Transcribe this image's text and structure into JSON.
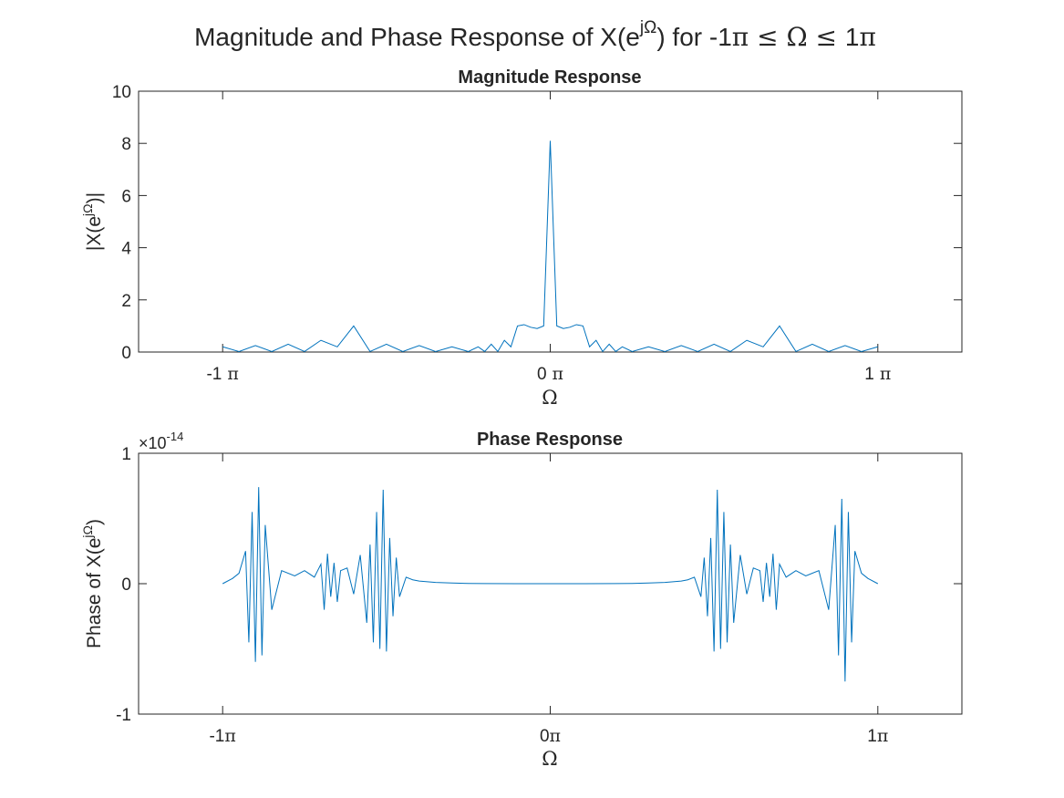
{
  "figure": {
    "title": {
      "prefix": "Magnitude and Phase Response of X(e",
      "superscript": "jΩ",
      "middle": ") for -1",
      "math": "π ≤ Ω ≤ ",
      "suffix_num": "1",
      "suffix_pi": "π"
    }
  },
  "chart_data": [
    {
      "type": "line",
      "title": "Magnitude Response",
      "xlabel": "Ω",
      "ylabel": {
        "prefix": "|X(e",
        "superscript": "jΩ",
        "suffix": ")|"
      },
      "xlim": [
        -1.2566,
        1.2566
      ],
      "ylim": [
        0,
        10
      ],
      "x_unit": "π",
      "xticks": [
        -1,
        0,
        1
      ],
      "xtick_labels": [
        {
          "num": "-1",
          "pi": " π"
        },
        {
          "num": "0",
          "pi": " π"
        },
        {
          "num": "1",
          "pi": " π"
        }
      ],
      "yticks": [
        0,
        2,
        4,
        6,
        8,
        10
      ],
      "ytick_labels": [
        "0",
        "2",
        "4",
        "6",
        "8",
        "10"
      ],
      "grid": false,
      "color": "#0072BD",
      "series": [
        {
          "x": [
            -1.0,
            -0.95,
            -0.9,
            -0.85,
            -0.8,
            -0.75,
            -0.7,
            -0.65,
            -0.6,
            -0.55,
            -0.5,
            -0.45,
            -0.4,
            -0.35,
            -0.3,
            -0.25,
            -0.22,
            -0.2,
            -0.18,
            -0.16,
            -0.14,
            -0.12,
            -0.1,
            -0.08,
            -0.06,
            -0.04,
            -0.02,
            0.0,
            0.02,
            0.04,
            0.06,
            0.08,
            0.1,
            0.12,
            0.14,
            0.16,
            0.18,
            0.2,
            0.22,
            0.25,
            0.3,
            0.35,
            0.4,
            0.45,
            0.5,
            0.55,
            0.6,
            0.65,
            0.7,
            0.75,
            0.8,
            0.85,
            0.9,
            0.95,
            1.0
          ],
          "y": [
            0.2,
            0.02,
            0.25,
            0.02,
            0.3,
            0.02,
            0.45,
            0.2,
            1.0,
            0.02,
            0.3,
            0.02,
            0.25,
            0.02,
            0.2,
            0.02,
            0.2,
            0.02,
            0.3,
            0.02,
            0.45,
            0.2,
            1.0,
            1.05,
            0.95,
            0.9,
            1.0,
            8.1,
            1.0,
            0.9,
            0.95,
            1.05,
            1.0,
            0.2,
            0.45,
            0.02,
            0.3,
            0.02,
            0.2,
            0.02,
            0.2,
            0.02,
            0.25,
            0.02,
            0.3,
            0.02,
            0.45,
            0.2,
            1.0,
            0.02,
            0.3,
            0.02,
            0.25,
            0.02,
            0.2
          ]
        }
      ]
    },
    {
      "type": "line",
      "title": "Phase Response",
      "xlabel": "Ω",
      "ylabel": {
        "prefix": "Phase of X(e",
        "superscript": "jΩ",
        "suffix": ")"
      },
      "xlim": [
        -1.2566,
        1.2566
      ],
      "ylim": [
        -1e-14,
        1e-14
      ],
      "x_unit": "π",
      "xticks": [
        -1,
        0,
        1
      ],
      "xtick_labels": [
        {
          "num": "-1",
          "pi": "π"
        },
        {
          "num": "0",
          "pi": "π"
        },
        {
          "num": "1",
          "pi": "π"
        }
      ],
      "yticks": [
        -1,
        0,
        1
      ],
      "ytick_labels": [
        "-1",
        "0",
        "1"
      ],
      "exponent": {
        "prefix": "×10",
        "power": "-14"
      },
      "grid": false,
      "color": "#0072BD",
      "series": [
        {
          "x": [
            -1.0,
            -0.97,
            -0.95,
            -0.93,
            -0.92,
            -0.91,
            -0.9,
            -0.89,
            -0.88,
            -0.87,
            -0.85,
            -0.82,
            -0.78,
            -0.75,
            -0.72,
            -0.7,
            -0.69,
            -0.68,
            -0.67,
            -0.66,
            -0.65,
            -0.64,
            -0.62,
            -0.6,
            -0.58,
            -0.56,
            -0.55,
            -0.54,
            -0.53,
            -0.52,
            -0.51,
            -0.5,
            -0.49,
            -0.48,
            -0.47,
            -0.46,
            -0.44,
            -0.42,
            -0.4,
            -0.35,
            -0.3,
            -0.25,
            -0.2,
            -0.1,
            0.0,
            0.1,
            0.2,
            0.25,
            0.3,
            0.35,
            0.4,
            0.42,
            0.44,
            0.46,
            0.47,
            0.48,
            0.49,
            0.5,
            0.51,
            0.52,
            0.53,
            0.54,
            0.55,
            0.56,
            0.58,
            0.6,
            0.62,
            0.64,
            0.65,
            0.66,
            0.67,
            0.68,
            0.69,
            0.7,
            0.72,
            0.75,
            0.78,
            0.82,
            0.85,
            0.87,
            0.88,
            0.89,
            0.9,
            0.91,
            0.92,
            0.93,
            0.95,
            0.97,
            1.0
          ],
          "y": [
            0.0,
            0.04,
            0.08,
            0.25,
            -0.45,
            0.55,
            -0.6,
            0.74,
            -0.55,
            0.45,
            -0.2,
            0.1,
            0.06,
            0.1,
            0.05,
            0.15,
            -0.2,
            0.23,
            -0.1,
            0.16,
            -0.14,
            0.1,
            0.12,
            -0.08,
            0.22,
            -0.3,
            0.3,
            -0.45,
            0.55,
            -0.5,
            0.72,
            -0.52,
            0.35,
            -0.25,
            0.2,
            -0.1,
            0.05,
            0.03,
            0.02,
            0.01,
            0.005,
            0.002,
            0.001,
            0.0,
            0.0,
            0.0,
            0.001,
            0.002,
            0.005,
            0.01,
            0.02,
            0.03,
            0.05,
            -0.1,
            0.2,
            -0.25,
            0.35,
            -0.52,
            0.72,
            -0.5,
            0.55,
            -0.45,
            0.3,
            -0.3,
            0.22,
            -0.08,
            0.12,
            0.1,
            -0.14,
            0.16,
            -0.1,
            0.23,
            -0.2,
            0.15,
            0.05,
            0.1,
            0.06,
            0.1,
            -0.2,
            0.45,
            -0.55,
            0.65,
            -0.75,
            0.55,
            -0.45,
            0.25,
            0.08,
            0.04,
            0.0
          ]
        }
      ]
    }
  ]
}
